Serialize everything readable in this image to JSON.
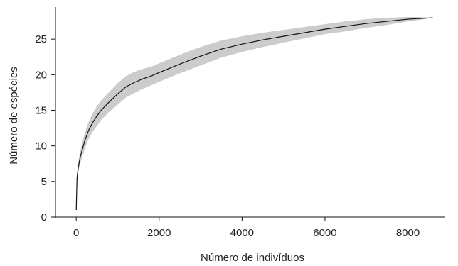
{
  "chart_data": {
    "type": "line",
    "title": "",
    "xlabel": "Número de indivíduos",
    "ylabel": "Número de espécies",
    "xlim": [
      -500,
      8900
    ],
    "ylim": [
      0,
      29.5
    ],
    "xticks": [
      0,
      2000,
      4000,
      6000,
      8000
    ],
    "yticks": [
      0,
      5,
      10,
      15,
      20,
      25
    ],
    "xtick_labels": [
      "0",
      "2000",
      "4000",
      "6000",
      "8000"
    ],
    "ytick_labels": [
      "0",
      "5",
      "10",
      "15",
      "20",
      "25"
    ],
    "grid": false,
    "series": [
      {
        "x": [
          1,
          20,
          50,
          100,
          200,
          300,
          400,
          500,
          600,
          800,
          1000,
          1200,
          1400,
          1600,
          1800,
          2000,
          2500,
          3000,
          3500,
          4000,
          4500,
          5000,
          5500,
          6000,
          6500,
          7000,
          7500,
          8000,
          8300,
          8600
        ],
        "y": [
          1,
          5.5,
          7,
          8.5,
          10.6,
          12.2,
          13.3,
          14.2,
          15,
          16.2,
          17.3,
          18.3,
          18.9,
          19.4,
          19.8,
          20.3,
          21.5,
          22.6,
          23.6,
          24.3,
          24.9,
          25.4,
          25.9,
          26.4,
          26.8,
          27.2,
          27.5,
          27.8,
          27.9,
          28
        ],
        "lower": [
          1,
          5,
          6.3,
          7.6,
          9.5,
          11,
          12,
          12.8,
          13.6,
          14.8,
          15.8,
          16.8,
          17.4,
          18,
          18.5,
          19,
          20.2,
          21.3,
          22.4,
          23.2,
          23.9,
          24.5,
          25.1,
          25.7,
          26.1,
          26.6,
          27,
          27.5,
          27.7,
          28
        ],
        "upper": [
          1,
          6,
          7.7,
          9.4,
          11.7,
          13.4,
          14.6,
          15.6,
          16.4,
          17.6,
          18.8,
          19.8,
          20.4,
          20.8,
          21.1,
          21.6,
          22.8,
          23.9,
          24.8,
          25.4,
          25.9,
          26.3,
          26.7,
          27.1,
          27.5,
          27.8,
          28,
          28.1,
          28.1,
          28
        ]
      }
    ]
  }
}
